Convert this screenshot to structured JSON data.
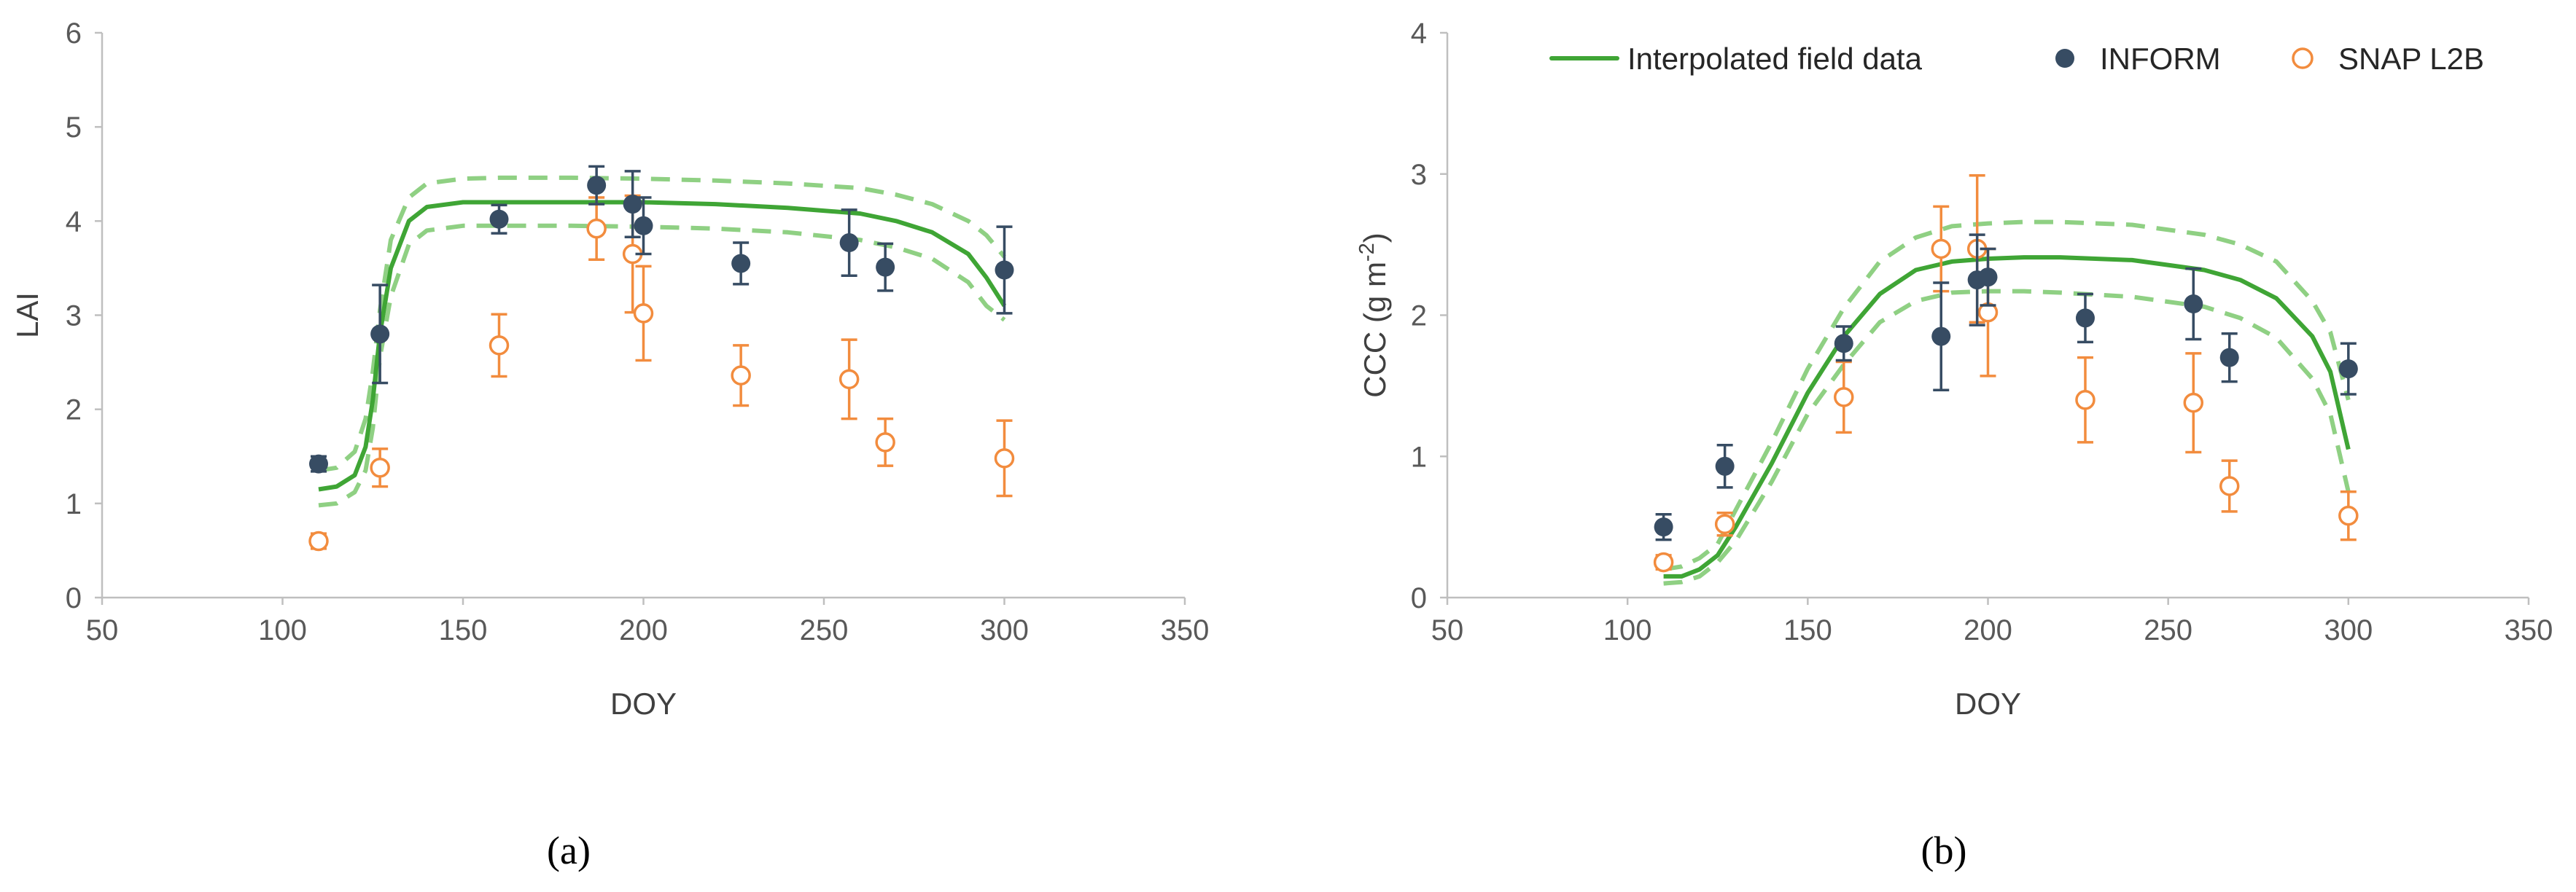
{
  "chart_data": [
    {
      "type": "scatter",
      "panel": "a",
      "caption": "(a)",
      "xlabel": "DOY",
      "ylabel": "LAI",
      "xlim": [
        50,
        350
      ],
      "ylim": [
        0,
        6
      ],
      "xticks": [
        50,
        100,
        150,
        200,
        250,
        300,
        350
      ],
      "yticks": [
        0,
        1,
        2,
        3,
        4,
        5,
        6
      ],
      "grid": false,
      "curve": {
        "name": "Interpolated field data",
        "x": [
          110,
          115,
          120,
          123,
          125,
          127,
          130,
          135,
          140,
          150,
          160,
          180,
          200,
          220,
          240,
          260,
          270,
          280,
          290,
          295,
          300
        ],
        "mean": [
          1.15,
          1.18,
          1.3,
          1.6,
          2.1,
          2.8,
          3.5,
          4.0,
          4.15,
          4.2,
          4.2,
          4.2,
          4.2,
          4.18,
          4.14,
          4.08,
          4.0,
          3.88,
          3.65,
          3.4,
          3.1
        ],
        "upper": [
          1.35,
          1.38,
          1.55,
          1.9,
          2.4,
          3.05,
          3.8,
          4.25,
          4.4,
          4.45,
          4.46,
          4.46,
          4.45,
          4.43,
          4.4,
          4.35,
          4.28,
          4.18,
          4.0,
          3.85,
          3.62
        ],
        "lower": [
          0.98,
          1.0,
          1.12,
          1.35,
          1.8,
          2.55,
          3.2,
          3.75,
          3.9,
          3.95,
          3.95,
          3.95,
          3.94,
          3.92,
          3.88,
          3.8,
          3.72,
          3.6,
          3.35,
          3.1,
          2.95
        ]
      },
      "series": [
        {
          "name": "INFORM",
          "x": [
            110,
            127,
            160,
            187,
            197,
            200,
            227,
            257,
            267,
            300
          ],
          "y": [
            1.42,
            2.8,
            4.02,
            4.38,
            4.18,
            3.95,
            3.55,
            3.77,
            3.51,
            3.48
          ],
          "err": [
            0.08,
            0.52,
            0.15,
            0.2,
            0.35,
            0.3,
            0.22,
            0.35,
            0.25,
            0.46
          ]
        },
        {
          "name": "SNAP L2B",
          "x": [
            110,
            127,
            160,
            187,
            197,
            200,
            227,
            257,
            267,
            300
          ],
          "y": [
            0.6,
            1.38,
            2.68,
            3.92,
            3.65,
            3.02,
            2.36,
            2.32,
            1.65,
            1.48
          ],
          "err": [
            0.08,
            0.2,
            0.33,
            0.33,
            0.62,
            0.5,
            0.32,
            0.42,
            0.25,
            0.4
          ]
        }
      ]
    },
    {
      "type": "scatter",
      "panel": "b",
      "caption": "(b)",
      "xlabel": "DOY",
      "ylabel_main": "CCC (g m",
      "ylabel_sup": "-2",
      "ylabel_end": ")",
      "xlim": [
        50,
        350
      ],
      "ylim": [
        0,
        4
      ],
      "xticks": [
        50,
        100,
        150,
        200,
        250,
        300,
        350
      ],
      "yticks": [
        0,
        1,
        2,
        3,
        4
      ],
      "grid": false,
      "legend_position": "top-right",
      "curve": {
        "name": "Interpolated field data",
        "x": [
          110,
          115,
          120,
          125,
          130,
          140,
          150,
          160,
          170,
          180,
          190,
          200,
          210,
          220,
          240,
          260,
          270,
          280,
          290,
          295,
          300
        ],
        "mean": [
          0.15,
          0.15,
          0.2,
          0.3,
          0.5,
          0.95,
          1.45,
          1.85,
          2.15,
          2.32,
          2.38,
          2.4,
          2.41,
          2.41,
          2.39,
          2.32,
          2.25,
          2.12,
          1.85,
          1.6,
          1.05
        ],
        "upper": [
          0.2,
          0.22,
          0.28,
          0.38,
          0.62,
          1.1,
          1.62,
          2.05,
          2.38,
          2.55,
          2.63,
          2.65,
          2.66,
          2.66,
          2.64,
          2.57,
          2.5,
          2.38,
          2.1,
          1.88,
          1.4
        ],
        "lower": [
          0.1,
          0.11,
          0.15,
          0.25,
          0.4,
          0.82,
          1.3,
          1.65,
          1.95,
          2.1,
          2.16,
          2.17,
          2.17,
          2.16,
          2.13,
          2.06,
          1.98,
          1.84,
          1.55,
          1.3,
          0.75
        ]
      },
      "series": [
        {
          "name": "INFORM",
          "x": [
            110,
            127,
            160,
            187,
            197,
            200,
            227,
            257,
            267,
            300
          ],
          "y": [
            0.5,
            0.93,
            1.8,
            1.85,
            2.25,
            2.27,
            1.98,
            2.08,
            1.7,
            1.62
          ],
          "err": [
            0.09,
            0.15,
            0.12,
            0.38,
            0.32,
            0.2,
            0.17,
            0.25,
            0.17,
            0.18
          ]
        },
        {
          "name": "SNAP L2B",
          "x": [
            110,
            127,
            160,
            187,
            197,
            200,
            227,
            257,
            267,
            300
          ],
          "y": [
            0.25,
            0.52,
            1.42,
            2.47,
            2.47,
            2.02,
            1.4,
            1.38,
            0.79,
            0.58
          ],
          "err": [
            0.05,
            0.08,
            0.25,
            0.3,
            0.52,
            0.45,
            0.3,
            0.35,
            0.18,
            0.17
          ]
        }
      ]
    }
  ],
  "colors": {
    "curve": "#3fa535",
    "band": "#8fd083",
    "inform": "#374c63",
    "snap": "#f28c3e",
    "axis": "#bfbfbf"
  }
}
